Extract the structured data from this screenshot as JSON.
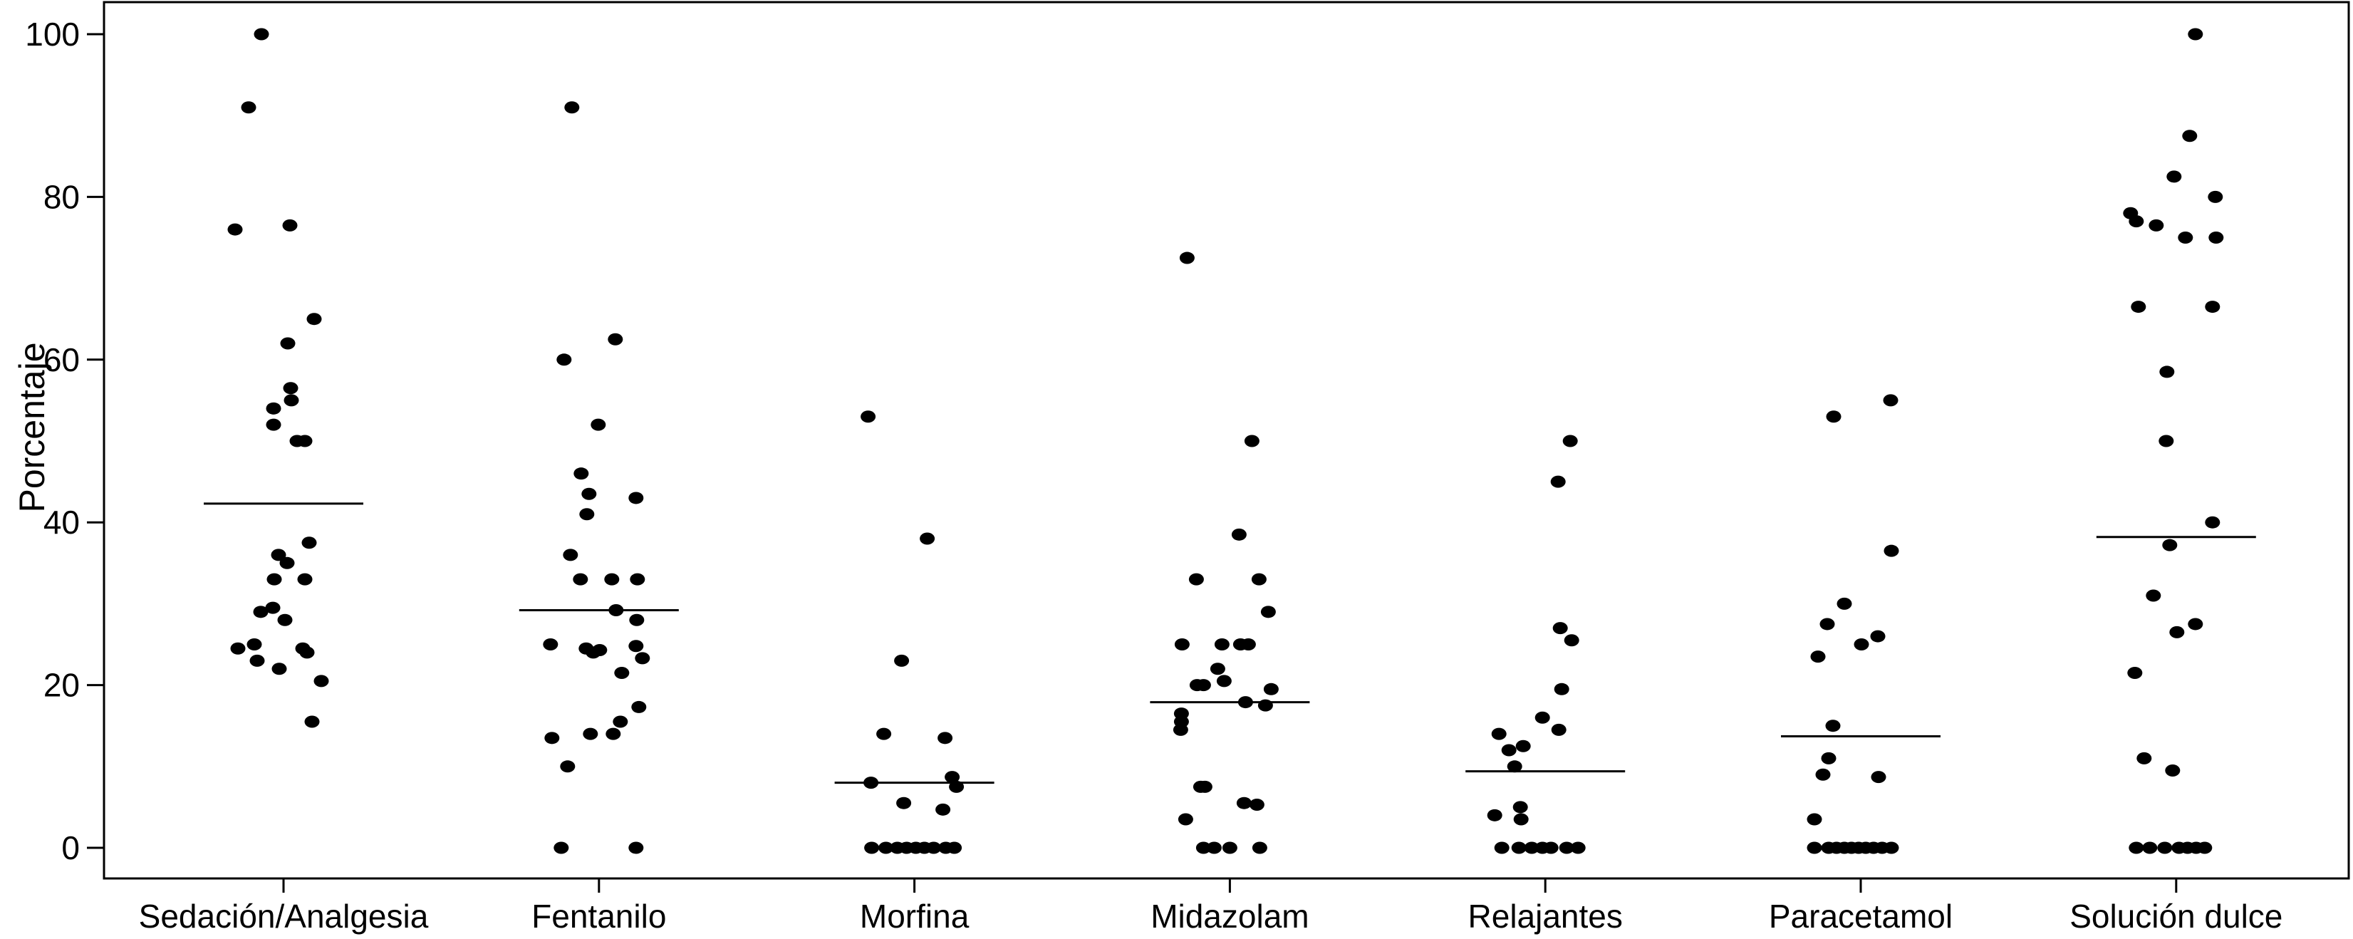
{
  "figure": {
    "background": "#ffffff",
    "dot_color": "#000000",
    "axis_color": "#000000"
  },
  "chart_data": {
    "type": "scatter",
    "variant": "strip-plot-with-mean-lines",
    "title": "",
    "xlabel": "",
    "ylabel": "Porcentaje",
    "ylim": [
      0,
      100
    ],
    "yticks": [
      0,
      20,
      40,
      60,
      80,
      100
    ],
    "grid": false,
    "legend": null,
    "categories": [
      "Sedación/Analgesia",
      "Fentanilo",
      "Morfina",
      "Midazolam",
      "Relajantes",
      "Paracetamol",
      "Solución dulce"
    ],
    "series": [
      {
        "category": "Sedación/Analgesia",
        "mean_line": 42.3,
        "points": [
          [
            -31,
            100
          ],
          [
            -49,
            91
          ],
          [
            -68,
            76
          ],
          [
            9,
            76.5
          ],
          [
            43,
            65
          ],
          [
            6,
            62
          ],
          [
            10,
            56.5
          ],
          [
            11,
            55
          ],
          [
            -14,
            54
          ],
          [
            -14,
            52
          ],
          [
            19,
            50
          ],
          [
            30,
            50
          ],
          [
            36,
            37.5
          ],
          [
            -7,
            36
          ],
          [
            5,
            35
          ],
          [
            -13,
            33
          ],
          [
            30,
            33
          ],
          [
            -15,
            29.5
          ],
          [
            -32,
            29
          ],
          [
            2,
            28
          ],
          [
            -41,
            25
          ],
          [
            -64,
            24.5
          ],
          [
            27,
            24.5
          ],
          [
            33,
            24
          ],
          [
            -37,
            23
          ],
          [
            -6,
            22
          ],
          [
            53,
            20.5
          ],
          [
            40,
            15.5
          ]
        ]
      },
      {
        "category": "Fentanilo",
        "mean_line": 29.2,
        "points": [
          [
            -38,
            91
          ],
          [
            23,
            62.5
          ],
          [
            -49,
            60
          ],
          [
            -1,
            52
          ],
          [
            -25,
            46
          ],
          [
            -14,
            43.5
          ],
          [
            52,
            43
          ],
          [
            -17,
            41
          ],
          [
            -40,
            36
          ],
          [
            -26,
            33
          ],
          [
            18,
            33
          ],
          [
            54,
            33
          ],
          [
            24,
            29.2
          ],
          [
            53,
            28
          ],
          [
            -68,
            25
          ],
          [
            52,
            24.8
          ],
          [
            -18,
            24.5
          ],
          [
            1,
            24.3
          ],
          [
            -8,
            24
          ],
          [
            61,
            23.3
          ],
          [
            32,
            21.5
          ],
          [
            56,
            17.3
          ],
          [
            30,
            15.5
          ],
          [
            -12,
            14
          ],
          [
            20,
            14
          ],
          [
            -66,
            13.5
          ],
          [
            -44,
            10
          ],
          [
            -53,
            0
          ],
          [
            52,
            0
          ]
        ]
      },
      {
        "category": "Morfina",
        "mean_line": 8.0,
        "points": [
          [
            -65,
            53
          ],
          [
            18,
            38
          ],
          [
            -18,
            23
          ],
          [
            -43,
            14
          ],
          [
            43,
            13.5
          ],
          [
            53,
            8.7
          ],
          [
            -61,
            8
          ],
          [
            59,
            7.5
          ],
          [
            -15,
            5.5
          ],
          [
            40,
            4.7
          ],
          [
            -60,
            0
          ],
          [
            -40,
            0
          ],
          [
            -24,
            0
          ],
          [
            -11,
            0
          ],
          [
            2,
            0
          ],
          [
            14,
            0
          ],
          [
            27,
            0
          ],
          [
            44,
            0
          ],
          [
            56,
            0
          ]
        ]
      },
      {
        "category": "Midazolam",
        "mean_line": 17.9,
        "points": [
          [
            -60,
            72.5
          ],
          [
            31,
            50
          ],
          [
            13,
            38.5
          ],
          [
            -47,
            33
          ],
          [
            41,
            33
          ],
          [
            54,
            29
          ],
          [
            -67,
            25
          ],
          [
            -11,
            25
          ],
          [
            15,
            25
          ],
          [
            26,
            25
          ],
          [
            -17,
            22
          ],
          [
            -8,
            20.5
          ],
          [
            -46,
            20
          ],
          [
            -37,
            20
          ],
          [
            58,
            19.5
          ],
          [
            22,
            17.9
          ],
          [
            50,
            17.5
          ],
          [
            -68,
            16.5
          ],
          [
            -68,
            15.5
          ],
          [
            -69,
            14.5
          ],
          [
            -41,
            7.5
          ],
          [
            -35,
            7.5
          ],
          [
            20,
            5.5
          ],
          [
            38,
            5.3
          ],
          [
            -62,
            3.5
          ],
          [
            -37,
            0
          ],
          [
            -22,
            0
          ],
          [
            0,
            0
          ],
          [
            42,
            0
          ]
        ]
      },
      {
        "category": "Relajantes",
        "mean_line": 9.4,
        "points": [
          [
            35,
            50
          ],
          [
            18,
            45
          ],
          [
            21,
            27
          ],
          [
            37,
            25.5
          ],
          [
            23,
            19.5
          ],
          [
            -4,
            16
          ],
          [
            19,
            14.5
          ],
          [
            -65,
            14
          ],
          [
            -31,
            12.5
          ],
          [
            -51,
            12
          ],
          [
            -43,
            10
          ],
          [
            -35,
            5
          ],
          [
            -71,
            4
          ],
          [
            -34,
            3.5
          ],
          [
            -61,
            0
          ],
          [
            -37,
            0
          ],
          [
            -19,
            0
          ],
          [
            -4,
            0
          ],
          [
            8,
            0
          ],
          [
            30,
            0
          ],
          [
            46,
            0
          ]
        ]
      },
      {
        "category": "Paracetamol",
        "mean_line": 13.7,
        "points": [
          [
            42,
            55
          ],
          [
            -38,
            53
          ],
          [
            43,
            36.5
          ],
          [
            -23,
            30
          ],
          [
            -47,
            27.5
          ],
          [
            24,
            26
          ],
          [
            1,
            25
          ],
          [
            -60,
            23.5
          ],
          [
            -39,
            15
          ],
          [
            -45,
            11
          ],
          [
            -53,
            9
          ],
          [
            25,
            8.7
          ],
          [
            -65,
            3.5
          ],
          [
            -65,
            0
          ],
          [
            -45,
            0
          ],
          [
            -34,
            0
          ],
          [
            -23,
            0
          ],
          [
            -13,
            0
          ],
          [
            -3,
            0
          ],
          [
            7,
            0
          ],
          [
            18,
            0
          ],
          [
            30,
            0
          ],
          [
            43,
            0
          ]
        ]
      },
      {
        "category": "Solución dulce",
        "mean_line": 38.2,
        "points": [
          [
            27,
            100
          ],
          [
            19,
            87.5
          ],
          [
            -3,
            82.5
          ],
          [
            55,
            80
          ],
          [
            -64,
            78
          ],
          [
            -56,
            77
          ],
          [
            -28,
            76.5
          ],
          [
            13,
            75
          ],
          [
            56,
            75
          ],
          [
            -53,
            66.5
          ],
          [
            51,
            66.5
          ],
          [
            -13,
            58.5
          ],
          [
            -14,
            50
          ],
          [
            51,
            40
          ],
          [
            -9,
            37.2
          ],
          [
            -32,
            31
          ],
          [
            27,
            27.5
          ],
          [
            1,
            26.5
          ],
          [
            -58,
            21.5
          ],
          [
            -45,
            11
          ],
          [
            -5,
            9.5
          ],
          [
            -56,
            0
          ],
          [
            -37,
            0
          ],
          [
            -16,
            0
          ],
          [
            4,
            0
          ],
          [
            16,
            0
          ],
          [
            28,
            0
          ],
          [
            40,
            0
          ]
        ]
      }
    ]
  }
}
